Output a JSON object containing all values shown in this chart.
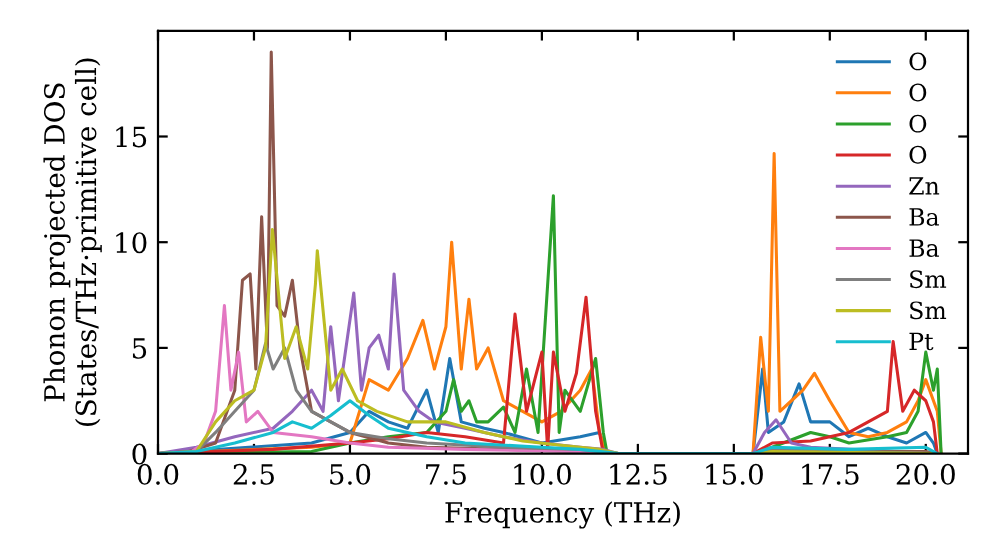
{
  "chart_data": {
    "type": "line",
    "xlabel": "Frequency (THz)",
    "ylabel": "Phonon projected DOS\n(States/THz·primitive cell)",
    "xlim": [
      0,
      21.1
    ],
    "ylim": [
      0,
      20
    ],
    "xticks": [
      {
        "value": 0,
        "label": "0.0"
      },
      {
        "value": 2.5,
        "label": "2.5"
      },
      {
        "value": 5,
        "label": "5.0"
      },
      {
        "value": 7.5,
        "label": "7.5"
      },
      {
        "value": 10,
        "label": "10.0"
      },
      {
        "value": 12.5,
        "label": "12.5"
      },
      {
        "value": 15,
        "label": "15.0"
      },
      {
        "value": 17.5,
        "label": "17.5"
      },
      {
        "value": 20,
        "label": "20.0"
      }
    ],
    "yticks": [
      0,
      5,
      10,
      15
    ],
    "grid": false,
    "legend": "top right",
    "marker": "none",
    "line_style": "solid",
    "series": [
      {
        "name": "O",
        "color": "#1f77b4",
        "x": [
          0,
          4,
          5,
          5.5,
          6,
          6.5,
          7,
          7.3,
          7.6,
          7.9,
          8.5,
          9,
          10,
          11,
          11.5,
          11.7,
          15.5,
          15.75,
          15.9,
          16.3,
          16.7,
          17,
          17.5,
          18,
          18.5,
          19,
          19.5,
          20,
          20.2,
          20.3
        ],
        "values": [
          0,
          0.5,
          1,
          2,
          1.5,
          1.2,
          3,
          1,
          4.5,
          1.5,
          1.2,
          1,
          0.5,
          0.8,
          1,
          0,
          0,
          4,
          1,
          1.5,
          3.3,
          1.5,
          1.5,
          0.8,
          1.2,
          0.8,
          0.5,
          1,
          0.5,
          0
        ]
      },
      {
        "name": "O",
        "color": "#ff7f0e",
        "x": [
          0,
          4,
          5,
          5.5,
          6,
          6.5,
          6.9,
          7.2,
          7.5,
          7.65,
          7.9,
          8.1,
          8.3,
          8.6,
          9,
          9.5,
          10,
          10.5,
          11,
          11.3,
          11.5,
          11.7,
          15.5,
          15.7,
          15.9,
          16.05,
          16.2,
          16.5,
          16.8,
          17.1,
          17.5,
          18,
          18.5,
          19,
          19.5,
          19.8,
          20,
          20.3,
          20.4
        ],
        "values": [
          0,
          0.3,
          0.5,
          3.5,
          3,
          4.5,
          6.3,
          4,
          6,
          10,
          4,
          7.3,
          4,
          5,
          2.5,
          2,
          1.5,
          2,
          3,
          4,
          1,
          0,
          0,
          5.5,
          2,
          14.2,
          2,
          2.5,
          3,
          3.8,
          2.5,
          1,
          0.8,
          1,
          1.5,
          2.5,
          3.5,
          2,
          0
        ]
      },
      {
        "name": "O",
        "color": "#2ca02c",
        "x": [
          0,
          4,
          5,
          6,
          7,
          7.5,
          7.7,
          7.9,
          8.1,
          8.3,
          8.6,
          9,
          9.3,
          9.6,
          9.9,
          10.3,
          10.45,
          10.6,
          11,
          11.4,
          11.6,
          11.7,
          15.5,
          16,
          17,
          17.5,
          18,
          19,
          19.5,
          19.8,
          20,
          20.2,
          20.3,
          20.4
        ],
        "values": [
          0,
          0.1,
          0.5,
          0.8,
          1,
          2,
          3.5,
          2,
          2.5,
          1.5,
          1.5,
          2.2,
          1,
          4,
          1,
          12.2,
          1,
          3,
          2,
          4.5,
          1,
          0,
          0,
          0.3,
          1,
          0.8,
          0.5,
          0.8,
          1,
          2,
          4.8,
          3,
          4,
          0
        ]
      },
      {
        "name": "O",
        "color": "#d62728",
        "x": [
          0,
          3,
          5,
          6,
          7,
          8,
          9,
          9.3,
          9.6,
          10,
          10.15,
          10.3,
          10.6,
          10.9,
          11.15,
          11.4,
          11.6,
          15.5,
          16,
          17,
          18,
          18.5,
          19,
          19.15,
          19.4,
          19.7,
          20,
          20.2,
          20.3
        ],
        "values": [
          0,
          0.2,
          0.5,
          0.7,
          1,
          0.8,
          0.5,
          6.6,
          2,
          4.8,
          0.2,
          4.8,
          2,
          3.8,
          7.4,
          2,
          0,
          0,
          0.5,
          0.6,
          1,
          1.5,
          2,
          5.3,
          2,
          3,
          2.5,
          1.5,
          0
        ]
      },
      {
        "name": "Zn",
        "color": "#9467bd",
        "x": [
          0,
          1,
          2,
          3,
          3.5,
          4,
          4.3,
          4.5,
          4.7,
          5.1,
          5.3,
          5.5,
          5.75,
          6,
          6.15,
          6.4,
          6.8,
          7.2,
          8,
          9,
          10,
          11,
          11.6,
          12,
          15.5,
          15.8,
          16.1,
          16.5,
          17,
          20.3
        ],
        "values": [
          0,
          0.3,
          0.8,
          1.2,
          2,
          3,
          2,
          6,
          2.5,
          7.6,
          3,
          5,
          5.6,
          4,
          8.5,
          3,
          2,
          1.5,
          1.2,
          0.8,
          0.5,
          0.3,
          0.2,
          0,
          0,
          1,
          1.6,
          0.5,
          0.3,
          0
        ]
      },
      {
        "name": "Ba",
        "color": "#8c564b",
        "x": [
          0,
          0.8,
          1.5,
          2,
          2.2,
          2.4,
          2.55,
          2.7,
          2.85,
          2.95,
          3.1,
          3.3,
          3.5,
          3.7,
          4,
          4.5,
          5,
          6,
          7,
          9,
          11,
          12,
          15.5,
          16,
          20,
          20.3
        ],
        "values": [
          0,
          0.1,
          0.5,
          3,
          8.2,
          8.5,
          4,
          11.2,
          5,
          19,
          7,
          6.5,
          8.2,
          5,
          2,
          1.5,
          1,
          0.5,
          0.3,
          0.2,
          0.1,
          0,
          0,
          0.1,
          0.1,
          0
        ]
      },
      {
        "name": "Ba",
        "color": "#e377c2",
        "x": [
          0,
          0.8,
          1.2,
          1.5,
          1.73,
          1.9,
          2.1,
          2.3,
          2.6,
          3,
          4,
          5,
          6,
          8,
          11,
          12,
          15.5,
          16,
          20.3
        ],
        "values": [
          0,
          0,
          0.5,
          2,
          7,
          3,
          4.8,
          1.5,
          2,
          1,
          0.8,
          0.5,
          0.3,
          0.2,
          0.1,
          0,
          0,
          0.1,
          0
        ]
      },
      {
        "name": "Sm",
        "color": "#7f7f7f",
        "x": [
          0,
          1,
          1.5,
          2,
          2.5,
          2.8,
          3,
          3.3,
          3.6,
          4,
          4.5,
          5,
          6,
          7,
          9,
          11,
          12,
          15.5,
          16,
          20.3
        ],
        "values": [
          0,
          0.1,
          1,
          2,
          3,
          5.2,
          4,
          5,
          3,
          2,
          1.5,
          1,
          0.7,
          0.5,
          0.3,
          0.2,
          0,
          0,
          0.2,
          0
        ]
      },
      {
        "name": "Sm",
        "color": "#bcbd22",
        "x": [
          0,
          1,
          1.5,
          2,
          2.5,
          2.8,
          2.98,
          3.3,
          3.6,
          3.9,
          4.1,
          4.15,
          4.5,
          4.8,
          5.2,
          5.7,
          6.5,
          7.5,
          8.5,
          9.5,
          10.5,
          11.5,
          12,
          15.5,
          16,
          20.3
        ],
        "values": [
          0,
          0.1,
          1.5,
          2.5,
          3,
          5,
          10.6,
          4.5,
          6,
          4,
          8,
          9.6,
          3,
          4,
          2.5,
          2,
          1.5,
          1.5,
          1,
          0.6,
          0.4,
          0.2,
          0,
          0,
          0.1,
          0
        ]
      },
      {
        "name": "Pt",
        "color": "#17becf",
        "x": [
          0,
          1,
          2,
          3,
          3.5,
          4,
          4.5,
          5,
          5.5,
          6,
          7,
          8,
          10,
          11,
          12,
          15.5,
          16,
          18,
          20,
          20.3
        ],
        "values": [
          0,
          0.1,
          0.5,
          1,
          1.5,
          1.2,
          1.8,
          2.5,
          1.8,
          1.2,
          0.8,
          0.5,
          0.3,
          0.2,
          0,
          0,
          0.3,
          0.2,
          0.3,
          0
        ]
      }
    ]
  }
}
